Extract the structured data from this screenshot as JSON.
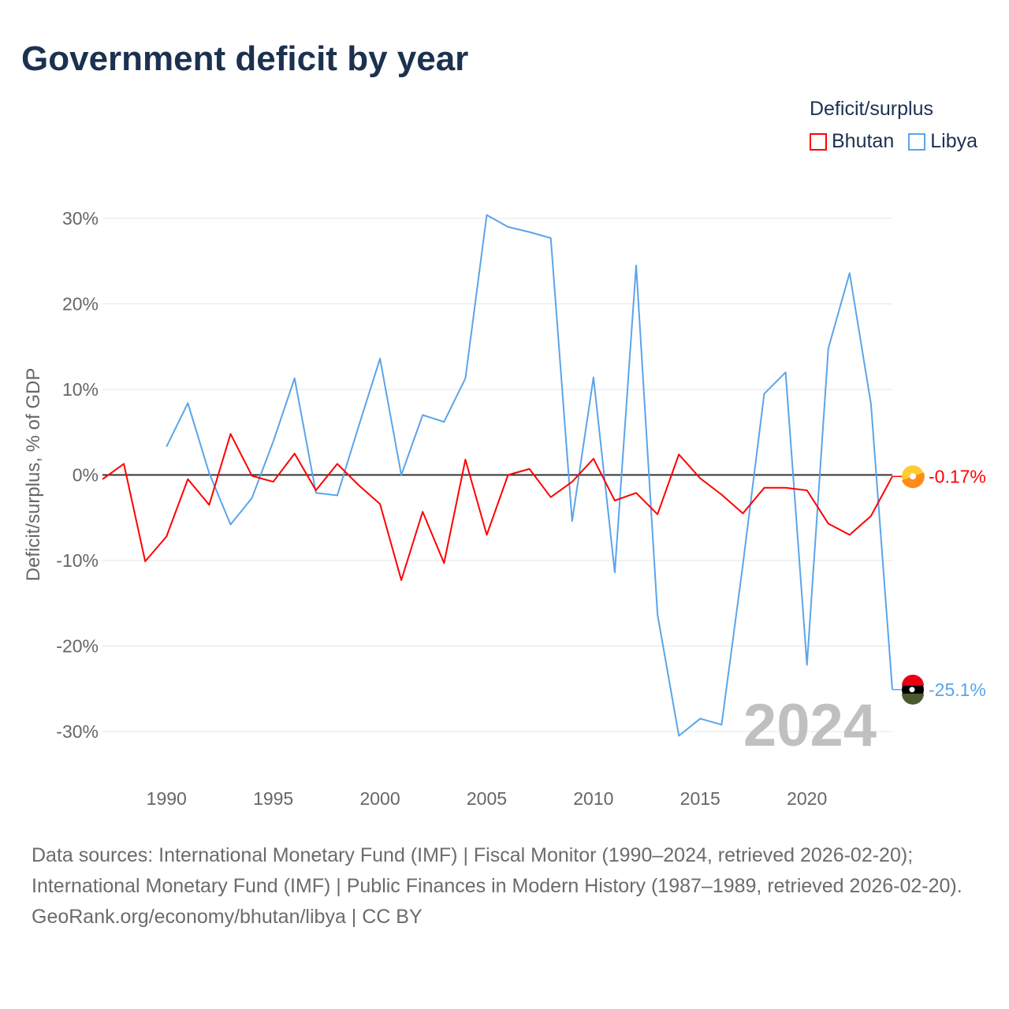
{
  "title": "Government deficit by year",
  "chart_data": {
    "type": "line",
    "title": "Government deficit by year",
    "xlabel": "",
    "ylabel": "Deficit/surplus, % of GDP",
    "ylim": [
      -30,
      30
    ],
    "xlim": [
      1987,
      2024
    ],
    "yticks": [
      30,
      20,
      10,
      0,
      -10,
      -20,
      -30
    ],
    "ytick_labels": [
      "30%",
      "20%",
      "10%",
      "0%",
      "-10%",
      "-20%",
      "-30%"
    ],
    "xticks": [
      1990,
      1995,
      2000,
      2005,
      2010,
      2015,
      2020
    ],
    "xtick_labels": [
      "1990",
      "1995",
      "2000",
      "2005",
      "2010",
      "2015",
      "2020"
    ],
    "grid": true,
    "legend_title": "Deficit/surplus",
    "legend_position": "top-right",
    "year_watermark": "2024",
    "series": [
      {
        "name": "Bhutan",
        "color": "#ff0000",
        "end_label": "-0.17%",
        "x": [
          1987,
          1988,
          1989,
          1990,
          1991,
          1992,
          1993,
          1994,
          1995,
          1996,
          1997,
          1998,
          1999,
          2000,
          2001,
          2002,
          2003,
          2004,
          2005,
          2006,
          2007,
          2008,
          2009,
          2010,
          2011,
          2012,
          2013,
          2014,
          2015,
          2016,
          2017,
          2018,
          2019,
          2020,
          2021,
          2022,
          2023,
          2024
        ],
        "values": [
          -0.5,
          1.3,
          -10.1,
          -7.2,
          -0.5,
          -3.5,
          4.8,
          -0.1,
          -0.8,
          2.5,
          -1.8,
          1.3,
          -1.2,
          -3.4,
          -12.3,
          -4.3,
          -10.3,
          1.8,
          -7.0,
          0.0,
          0.7,
          -2.6,
          -0.8,
          1.9,
          -3.0,
          -2.1,
          -4.6,
          2.4,
          -0.4,
          -2.3,
          -4.5,
          -1.5,
          -1.5,
          -1.8,
          -5.7,
          -7.0,
          -4.8,
          -0.17
        ]
      },
      {
        "name": "Libya",
        "color": "#5ba4ea",
        "end_label": "-25.1%",
        "x": [
          1990,
          1991,
          1992,
          1993,
          1994,
          1995,
          1996,
          1997,
          1998,
          1999,
          2000,
          2001,
          2002,
          2003,
          2004,
          2005,
          2006,
          2007,
          2008,
          2009,
          2010,
          2011,
          2012,
          2013,
          2014,
          2015,
          2016,
          2017,
          2018,
          2019,
          2020,
          2021,
          2022,
          2023,
          2024
        ],
        "values": [
          3.3,
          8.4,
          0.2,
          -5.8,
          -2.7,
          3.9,
          11.3,
          -2.1,
          -2.4,
          5.7,
          13.6,
          0.0,
          7.0,
          6.2,
          11.3,
          30.4,
          29.0,
          28.4,
          27.7,
          -5.4,
          11.4,
          -11.4,
          24.5,
          -16.3,
          -30.5,
          -28.5,
          -29.2,
          -10.5,
          9.5,
          12.0,
          -22.2,
          14.8,
          23.6,
          8.3,
          -25.1
        ]
      }
    ]
  },
  "footer": {
    "sources": "Data sources: International Monetary Fund (IMF) | Fiscal Monitor (1990–2024, retrieved 2026-02-20); International Monetary Fund (IMF) | Public Finances in Modern History (1987–1989, retrieved 2026-02-20).",
    "credit": "GeoRank.org/economy/bhutan/libya | CC BY"
  }
}
